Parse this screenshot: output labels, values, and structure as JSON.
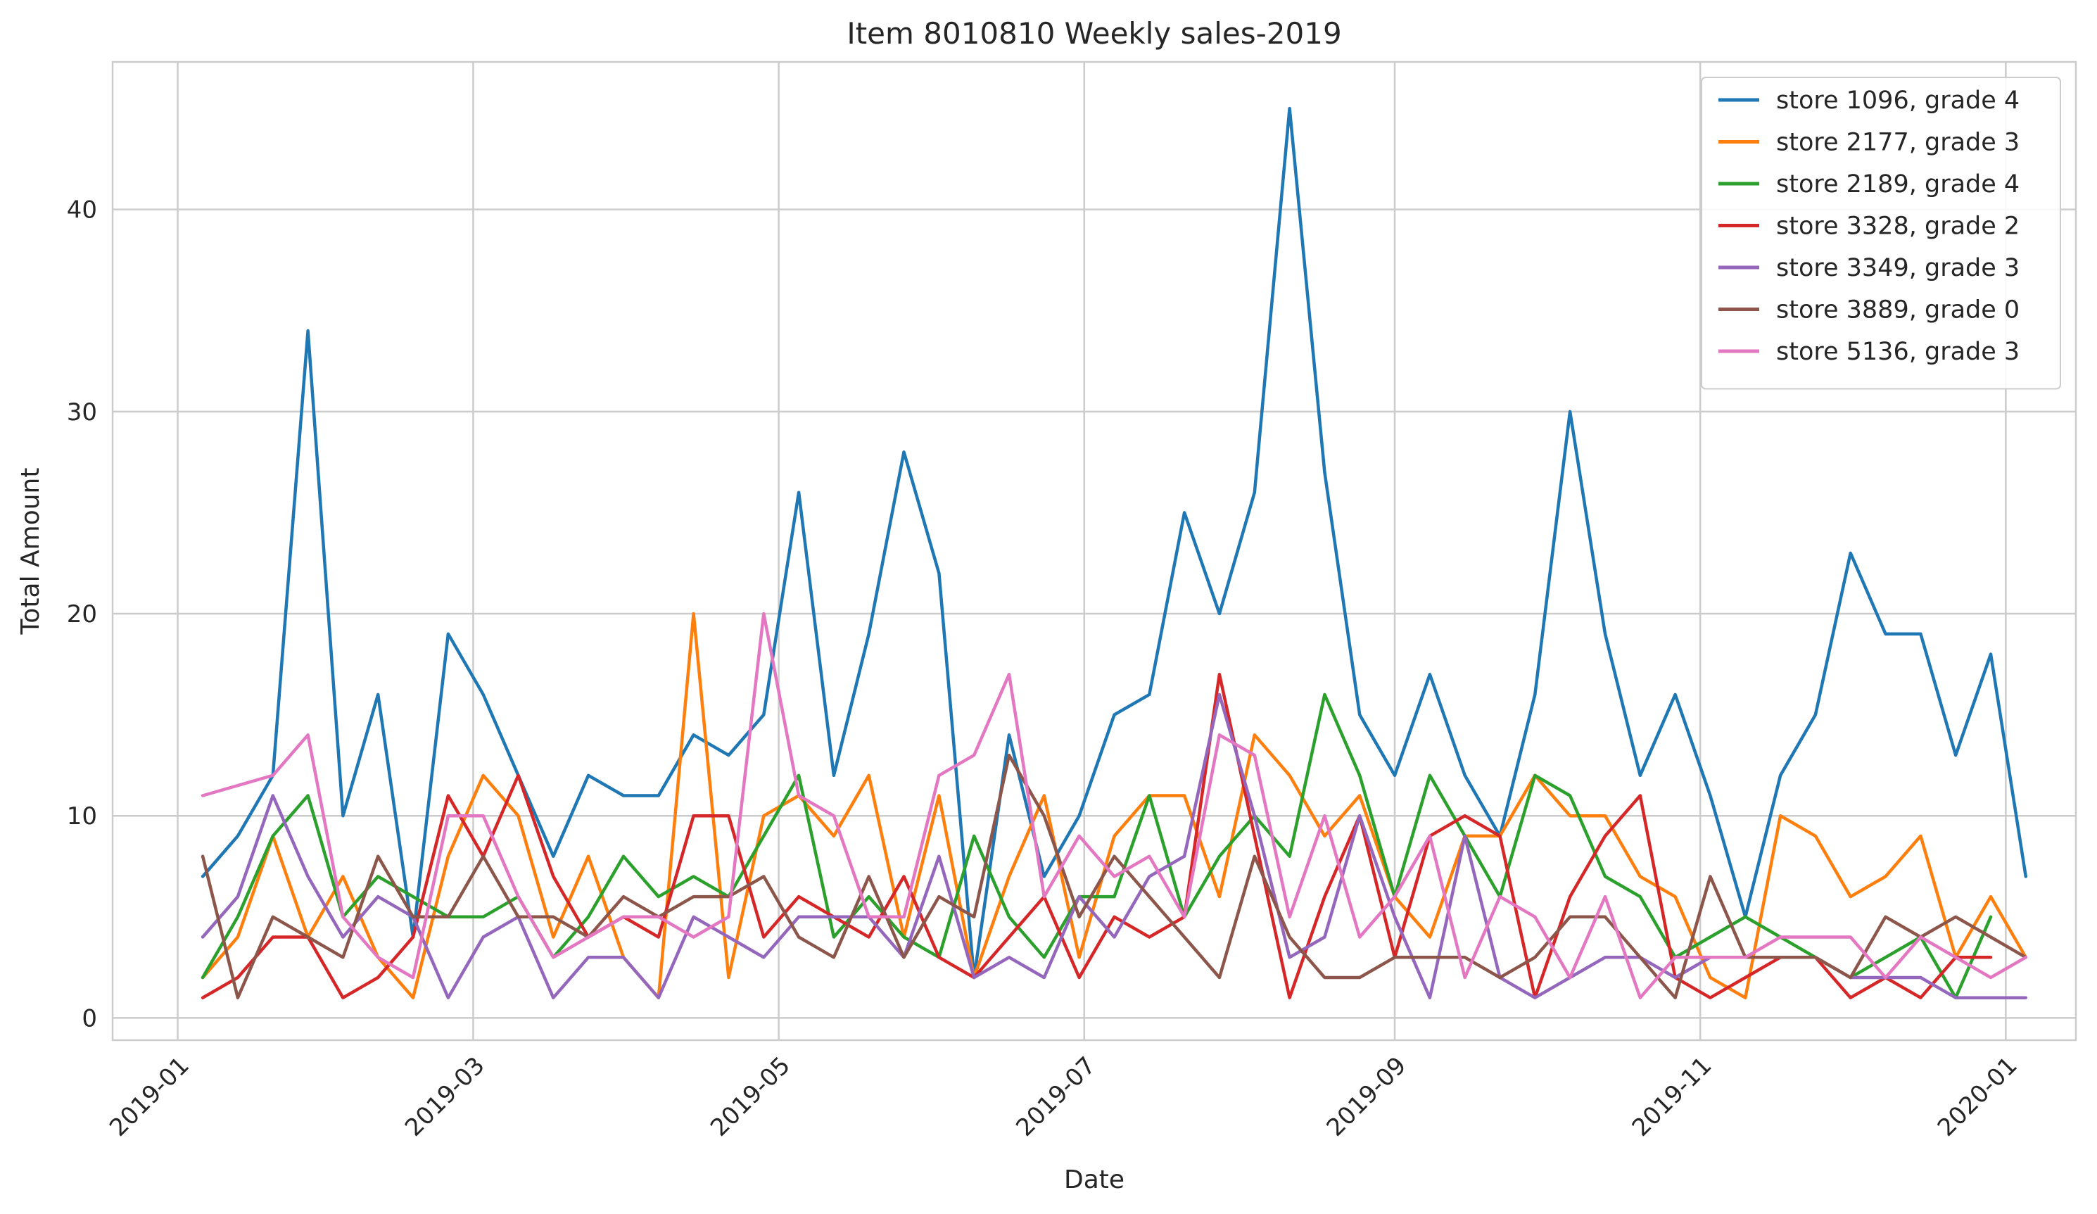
{
  "chart_data": {
    "type": "line",
    "title": "Item 8010810 Weekly sales-2019",
    "xlabel": "Date",
    "ylabel": "Total Amount",
    "xlim": [
      "2018-12-19",
      "2020-01-15"
    ],
    "ylim": [
      -1.1,
      47.3
    ],
    "x_ticks": [
      "2019-01",
      "2019-03",
      "2019-05",
      "2019-07",
      "2019-09",
      "2019-11",
      "2020-01"
    ],
    "x_tick_dates": [
      "2019-01-01",
      "2019-03-01",
      "2019-05-01",
      "2019-07-01",
      "2019-09-01",
      "2019-11-01",
      "2020-01-01"
    ],
    "y_ticks": [
      0,
      10,
      20,
      30,
      40
    ],
    "grid": true,
    "legend_position": "top-right",
    "x": [
      "2019-01-06",
      "2019-01-13",
      "2019-01-20",
      "2019-01-27",
      "2019-02-03",
      "2019-02-10",
      "2019-02-17",
      "2019-02-24",
      "2019-03-03",
      "2019-03-10",
      "2019-03-17",
      "2019-03-24",
      "2019-03-31",
      "2019-04-07",
      "2019-04-14",
      "2019-04-21",
      "2019-04-28",
      "2019-05-05",
      "2019-05-12",
      "2019-05-19",
      "2019-05-26",
      "2019-06-02",
      "2019-06-09",
      "2019-06-16",
      "2019-06-23",
      "2019-06-30",
      "2019-07-07",
      "2019-07-14",
      "2019-07-21",
      "2019-07-28",
      "2019-08-04",
      "2019-08-11",
      "2019-08-18",
      "2019-08-25",
      "2019-09-01",
      "2019-09-08",
      "2019-09-15",
      "2019-09-22",
      "2019-09-29",
      "2019-10-06",
      "2019-10-13",
      "2019-10-20",
      "2019-10-27",
      "2019-11-03",
      "2019-11-10",
      "2019-11-17",
      "2019-11-24",
      "2019-12-01",
      "2019-12-08",
      "2019-12-15",
      "2019-12-22",
      "2019-12-29",
      "2020-01-05"
    ],
    "series": [
      {
        "name": "store 1096, grade 4",
        "color": "#1f77b4",
        "values": [
          7,
          9,
          12,
          34,
          10,
          16,
          4,
          19,
          16,
          12,
          8,
          12,
          11,
          11,
          14,
          13,
          15,
          26,
          12,
          19,
          28,
          22,
          2,
          14,
          7,
          10,
          15,
          16,
          25,
          20,
          26,
          45,
          27,
          15,
          12,
          17,
          12,
          9,
          16,
          30,
          19,
          12,
          16,
          11,
          5,
          12,
          15,
          23,
          19,
          19,
          13,
          18,
          7
        ]
      },
      {
        "name": "store 2177, grade 3",
        "color": "#ff7f0e",
        "values": [
          2,
          4,
          9,
          4,
          7,
          3,
          1,
          8,
          12,
          10,
          4,
          8,
          3,
          1,
          20,
          2,
          10,
          11,
          9,
          12,
          4,
          11,
          2,
          7,
          11,
          3,
          9,
          11,
          11,
          6,
          14,
          12,
          9,
          11,
          6,
          4,
          9,
          9,
          12,
          10,
          10,
          7,
          6,
          2,
          1,
          10,
          9,
          6,
          7,
          9,
          3,
          6,
          3
        ]
      },
      {
        "name": "store 2189, grade 4",
        "color": "#2ca02c",
        "values": [
          2,
          5,
          9,
          11,
          5,
          7,
          6,
          5,
          5,
          6,
          3,
          5,
          8,
          6,
          7,
          6,
          9,
          12,
          4,
          6,
          4,
          3,
          9,
          5,
          3,
          6,
          6,
          11,
          5,
          8,
          10,
          8,
          16,
          12,
          6,
          12,
          9,
          6,
          12,
          11,
          7,
          6,
          3,
          4,
          5,
          4,
          3,
          2,
          3,
          4,
          1,
          5,
          null
        ]
      },
      {
        "name": "store 3328, grade 2",
        "color": "#d62728",
        "values": [
          1,
          2,
          4,
          4,
          1,
          2,
          4,
          11,
          8,
          12,
          7,
          4,
          5,
          4,
          10,
          10,
          4,
          6,
          5,
          4,
          7,
          3,
          2,
          4,
          6,
          2,
          5,
          4,
          5,
          17,
          9,
          1,
          6,
          10,
          3,
          9,
          10,
          9,
          1,
          6,
          9,
          11,
          2,
          1,
          2,
          3,
          3,
          1,
          2,
          1,
          3,
          3,
          null
        ]
      },
      {
        "name": "store 3349, grade 3",
        "color": "#9467bd",
        "values": [
          4,
          6,
          11,
          7,
          4,
          6,
          5,
          1,
          4,
          5,
          1,
          3,
          3,
          1,
          5,
          4,
          3,
          5,
          5,
          5,
          3,
          8,
          2,
          3,
          2,
          6,
          4,
          7,
          8,
          16,
          10,
          3,
          4,
          10,
          5,
          1,
          9,
          2,
          1,
          2,
          3,
          3,
          2,
          3,
          3,
          3,
          3,
          2,
          2,
          2,
          1,
          1,
          1
        ]
      },
      {
        "name": "store 3889, grade 0",
        "color": "#8c564b",
        "values": [
          8,
          1,
          5,
          4,
          3,
          8,
          5,
          5,
          8,
          5,
          5,
          4,
          6,
          5,
          6,
          6,
          7,
          4,
          3,
          7,
          3,
          6,
          5,
          13,
          10,
          5,
          8,
          6,
          4,
          2,
          8,
          4,
          2,
          2,
          3,
          3,
          3,
          2,
          3,
          5,
          5,
          3,
          1,
          7,
          3,
          3,
          3,
          2,
          5,
          4,
          5,
          4,
          3
        ]
      },
      {
        "name": "store 5136, grade 3",
        "color": "#e377c2",
        "values": [
          11,
          11.5,
          12,
          14,
          5,
          3,
          2,
          10,
          10,
          6,
          3,
          4,
          5,
          5,
          4,
          5,
          20,
          11,
          10,
          5,
          5,
          12,
          13,
          17,
          6,
          9,
          7,
          8,
          5,
          14,
          13,
          5,
          10,
          4,
          6,
          9,
          2,
          6,
          5,
          2,
          6,
          1,
          3,
          3,
          3,
          4,
          4,
          4,
          2,
          4,
          3,
          2,
          3
        ]
      }
    ]
  }
}
